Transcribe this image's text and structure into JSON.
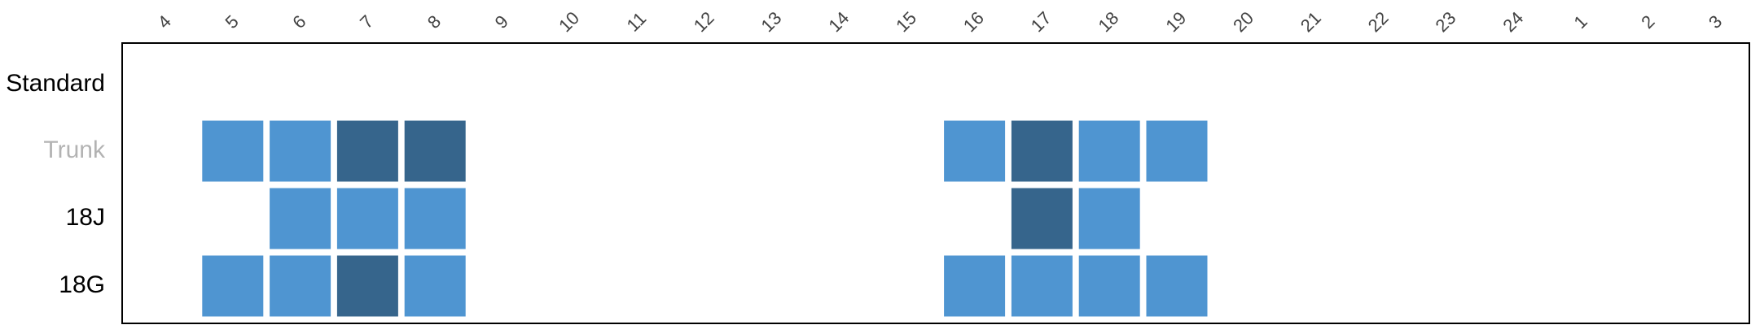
{
  "chart_data": {
    "type": "heatmap",
    "title": "",
    "xlabel": "",
    "ylabel": "",
    "grid": false,
    "legend": "none",
    "x": [
      "4",
      "5",
      "6",
      "7",
      "8",
      "9",
      "10",
      "11",
      "12",
      "13",
      "14",
      "15",
      "16",
      "17",
      "18",
      "19",
      "20",
      "21",
      "22",
      "23",
      "24",
      "1",
      "2",
      "3"
    ],
    "rows": [
      {
        "label": "Standard",
        "muted": false,
        "cells": []
      },
      {
        "label": "Trunk",
        "muted": true,
        "cells": [
          {
            "x": "5",
            "level": "light"
          },
          {
            "x": "6",
            "level": "light"
          },
          {
            "x": "7",
            "level": "dark"
          },
          {
            "x": "8",
            "level": "dark"
          },
          {
            "x": "16",
            "level": "light"
          },
          {
            "x": "17",
            "level": "dark"
          },
          {
            "x": "18",
            "level": "light"
          },
          {
            "x": "19",
            "level": "light"
          }
        ]
      },
      {
        "label": "18J",
        "muted": false,
        "cells": [
          {
            "x": "6",
            "level": "light"
          },
          {
            "x": "7",
            "level": "light"
          },
          {
            "x": "8",
            "level": "light"
          },
          {
            "x": "17",
            "level": "dark"
          },
          {
            "x": "18",
            "level": "light"
          }
        ]
      },
      {
        "label": "18G",
        "muted": false,
        "cells": [
          {
            "x": "5",
            "level": "light"
          },
          {
            "x": "6",
            "level": "light"
          },
          {
            "x": "7",
            "level": "dark"
          },
          {
            "x": "8",
            "level": "light"
          },
          {
            "x": "16",
            "level": "light"
          },
          {
            "x": "17",
            "level": "light"
          },
          {
            "x": "18",
            "level": "light"
          },
          {
            "x": "19",
            "level": "light"
          }
        ]
      }
    ],
    "colors": {
      "light": "#4f95d1",
      "dark": "#36658c",
      "muted_label": "#b3b3b3",
      "border": "#000000"
    }
  }
}
